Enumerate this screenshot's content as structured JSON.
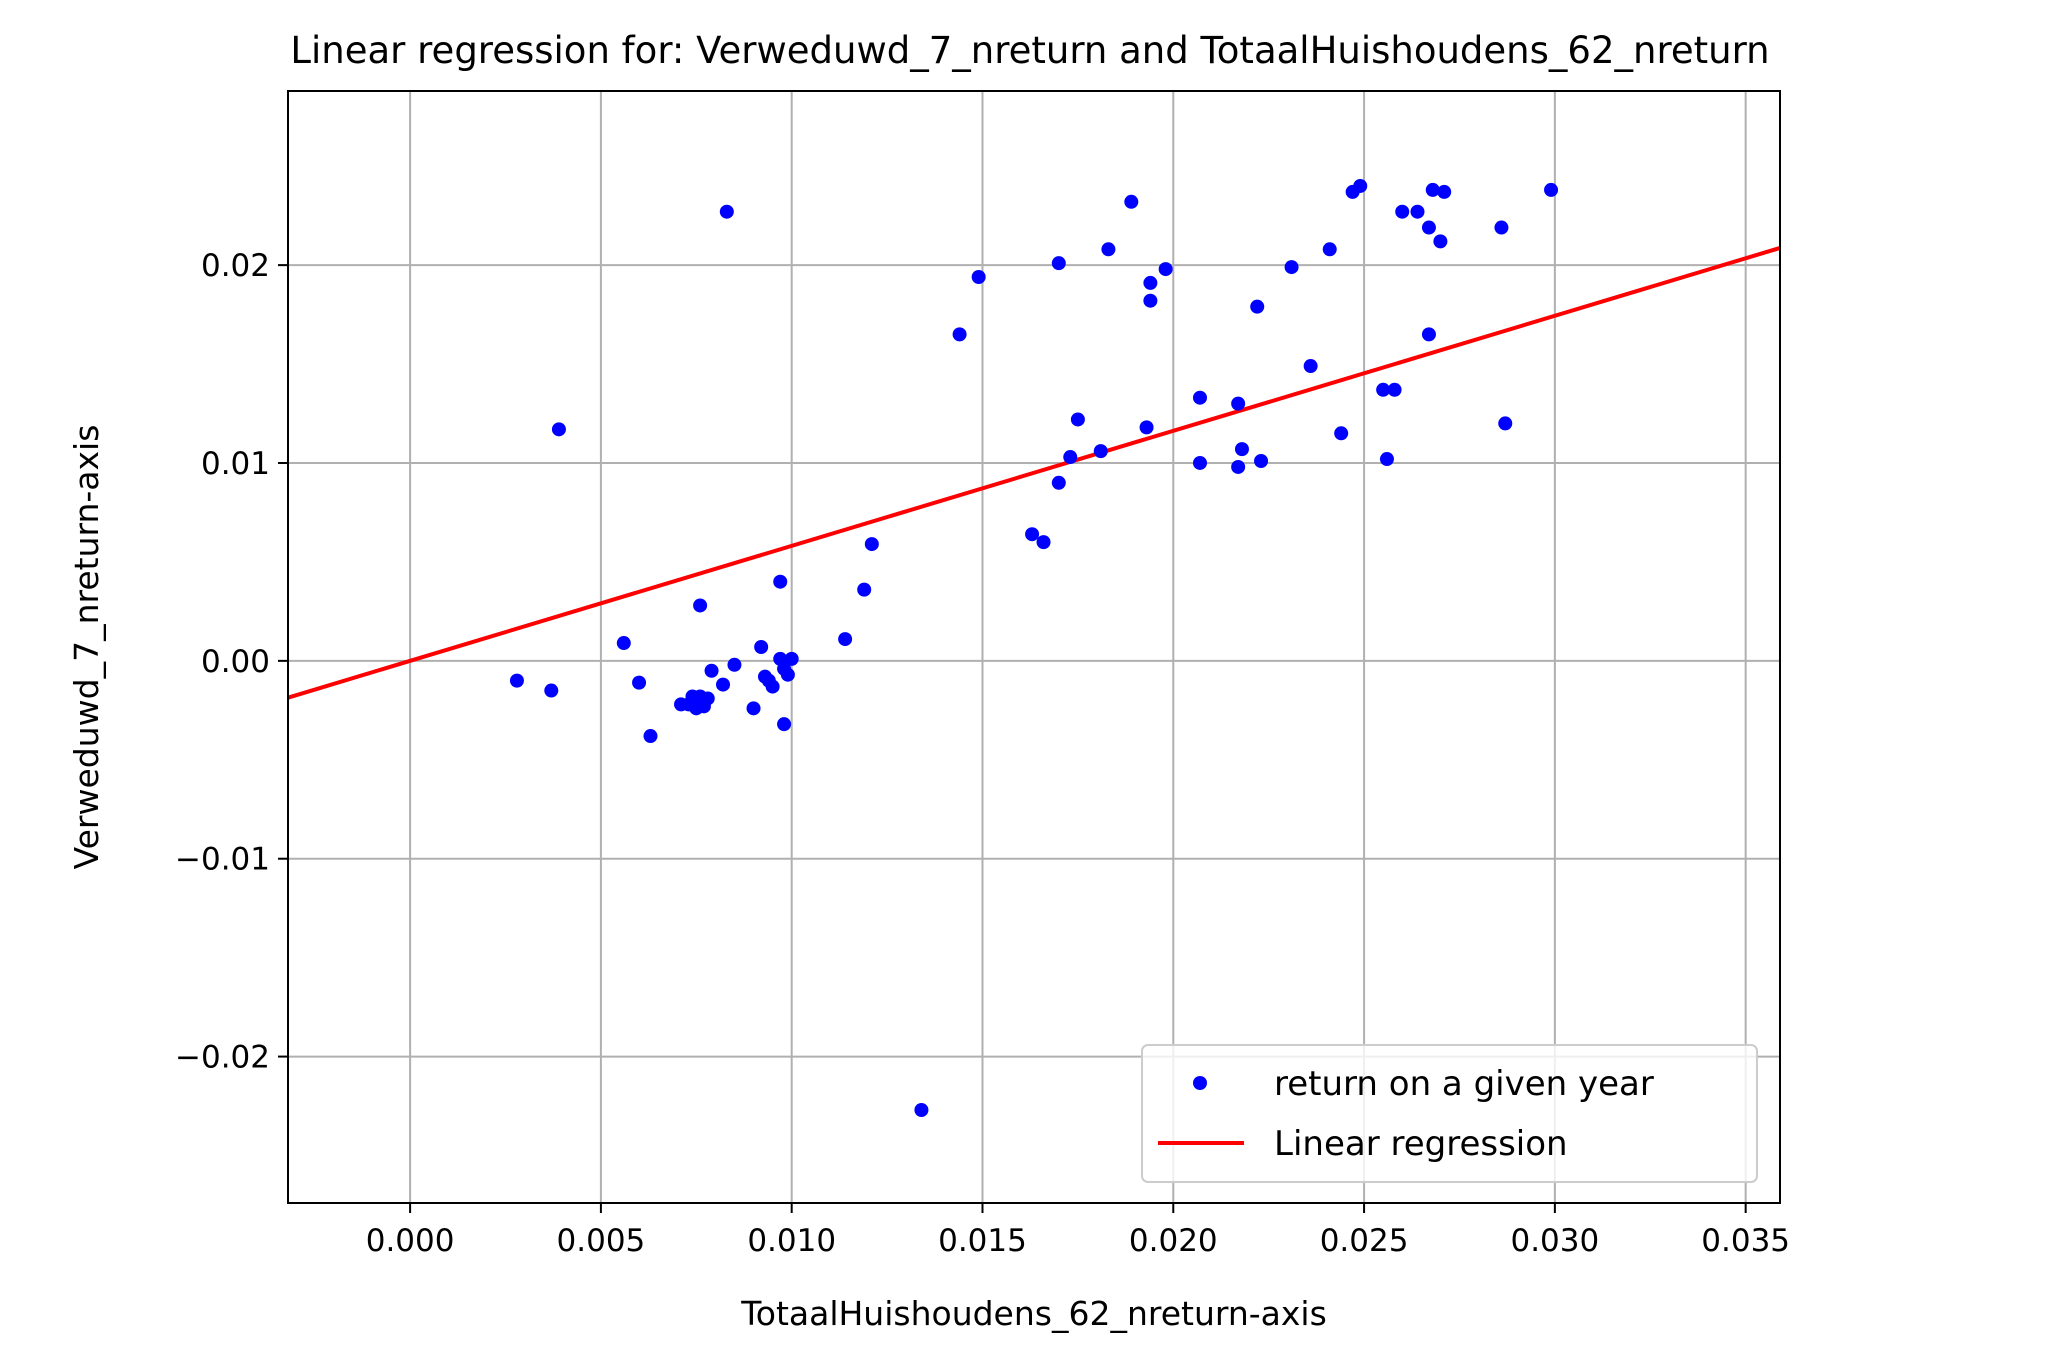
{
  "chart_data": {
    "type": "scatter",
    "title": "Linear regression for: Verweduwd_7_nreturn and TotaalHuishoudens_62_nreturn",
    "xlabel": "TotaalHuishoudens_62_nreturn-axis",
    "ylabel": "Verweduwd_7_nreturn-axis",
    "xlim": [
      -0.0032,
      0.0359
    ],
    "ylim": [
      -0.0274,
      0.0288
    ],
    "xticks": [
      0.0,
      0.005,
      0.01,
      0.015,
      0.02,
      0.025,
      0.03,
      0.035
    ],
    "xtick_labels": [
      "0.000",
      "0.005",
      "0.010",
      "0.015",
      "0.020",
      "0.025",
      "0.030",
      "0.035"
    ],
    "yticks": [
      -0.02,
      -0.01,
      0.0,
      0.01,
      0.02
    ],
    "ytick_labels": [
      "−0.02",
      "−0.01",
      "0.00",
      "0.01",
      "0.02"
    ],
    "grid": true,
    "legend_position": "lower-right",
    "colors": {
      "scatter": "#0000ff",
      "regression": "#ff0000",
      "grid": "#b0b0b0"
    },
    "series": [
      {
        "name": "return on a given year",
        "kind": "scatter",
        "points": [
          [
            0.0028,
            -0.001
          ],
          [
            0.0037,
            -0.0015
          ],
          [
            0.0039,
            0.0117
          ],
          [
            0.0056,
            0.0009
          ],
          [
            0.006,
            -0.0011
          ],
          [
            0.0063,
            -0.0038
          ],
          [
            0.0071,
            -0.0022
          ],
          [
            0.0073,
            -0.0022
          ],
          [
            0.0074,
            -0.0018
          ],
          [
            0.0075,
            -0.0024
          ],
          [
            0.0076,
            0.0028
          ],
          [
            0.0076,
            -0.0018
          ],
          [
            0.0077,
            -0.0023
          ],
          [
            0.0078,
            -0.0019
          ],
          [
            0.0079,
            -0.0005
          ],
          [
            0.0082,
            -0.0012
          ],
          [
            0.0083,
            0.0227
          ],
          [
            0.0085,
            -0.0002
          ],
          [
            0.009,
            -0.0024
          ],
          [
            0.0092,
            0.0007
          ],
          [
            0.0093,
            -0.0008
          ],
          [
            0.0094,
            -0.001
          ],
          [
            0.0095,
            -0.0013
          ],
          [
            0.0097,
            0.004
          ],
          [
            0.0097,
            0.0001
          ],
          [
            0.0098,
            -0.0032
          ],
          [
            0.0098,
            -0.0004
          ],
          [
            0.0099,
            -0.0007
          ],
          [
            0.01,
            0.0001
          ],
          [
            0.0114,
            0.0011
          ],
          [
            0.0119,
            0.0036
          ],
          [
            0.0121,
            0.0059
          ],
          [
            0.0134,
            -0.0227
          ],
          [
            0.0144,
            0.0165
          ],
          [
            0.0149,
            0.0194
          ],
          [
            0.0163,
            0.0064
          ],
          [
            0.0166,
            0.006
          ],
          [
            0.017,
            0.009
          ],
          [
            0.017,
            0.0201
          ],
          [
            0.0173,
            0.0103
          ],
          [
            0.0175,
            0.0122
          ],
          [
            0.0181,
            0.0106
          ],
          [
            0.0183,
            0.0208
          ],
          [
            0.0189,
            0.0232
          ],
          [
            0.0193,
            0.0118
          ],
          [
            0.0194,
            0.0191
          ],
          [
            0.0194,
            0.0182
          ],
          [
            0.0198,
            0.0198
          ],
          [
            0.0207,
            0.0133
          ],
          [
            0.0207,
            0.01
          ],
          [
            0.0217,
            0.013
          ],
          [
            0.0217,
            0.0098
          ],
          [
            0.0218,
            0.0107
          ],
          [
            0.0222,
            0.0179
          ],
          [
            0.0223,
            0.0101
          ],
          [
            0.0231,
            0.0199
          ],
          [
            0.0236,
            0.0149
          ],
          [
            0.0241,
            0.0208
          ],
          [
            0.0244,
            0.0115
          ],
          [
            0.0247,
            0.0237
          ],
          [
            0.0249,
            0.024
          ],
          [
            0.0255,
            0.0137
          ],
          [
            0.0256,
            0.0102
          ],
          [
            0.0258,
            0.0137
          ],
          [
            0.026,
            0.0227
          ],
          [
            0.0264,
            0.0227
          ],
          [
            0.0267,
            0.0219
          ],
          [
            0.0267,
            0.0165
          ],
          [
            0.0268,
            0.0238
          ],
          [
            0.027,
            0.0212
          ],
          [
            0.0271,
            0.0237
          ],
          [
            0.0286,
            0.0219
          ],
          [
            0.0287,
            0.012
          ],
          [
            0.0299,
            0.0238
          ]
        ]
      },
      {
        "name": "Linear regression",
        "kind": "line",
        "slope": 0.5813,
        "intercept": 0.0
      }
    ]
  }
}
